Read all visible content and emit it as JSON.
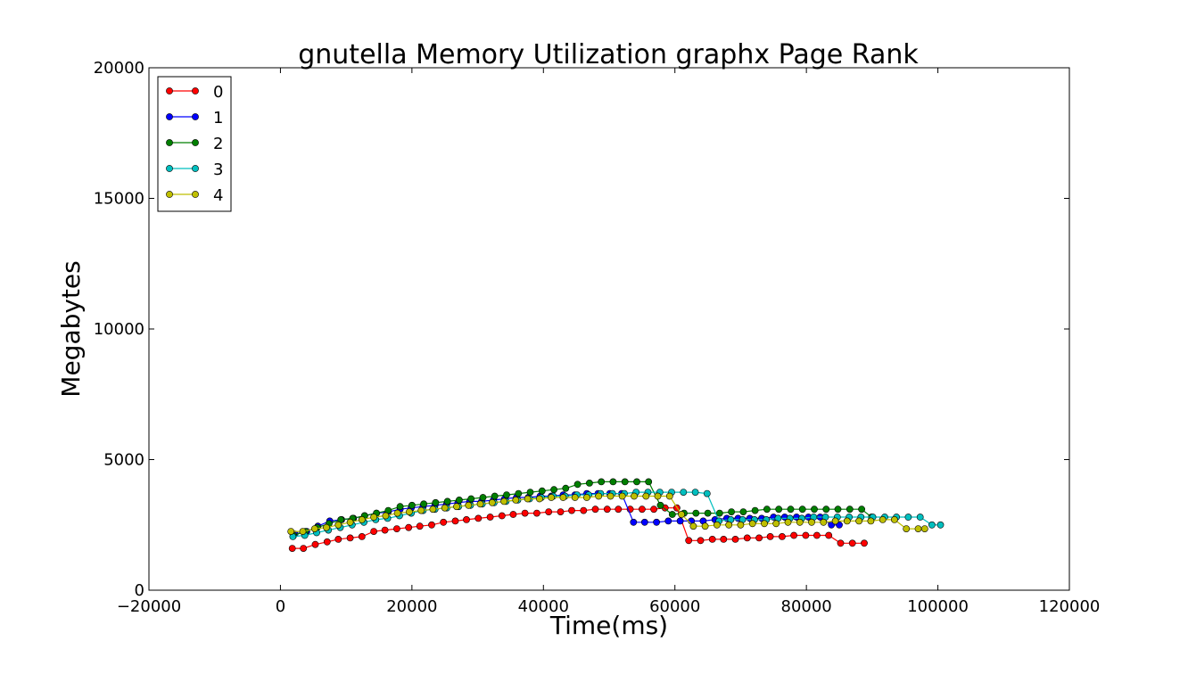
{
  "chart_data": {
    "type": "line",
    "title": "gnutella Memory Utilization graphx Page Rank",
    "xlabel": "Time(ms)",
    "ylabel": "Megabytes",
    "xlim": [
      -20000,
      120000
    ],
    "ylim": [
      0,
      20000
    ],
    "xticks": [
      -20000,
      0,
      20000,
      40000,
      60000,
      80000,
      100000,
      120000
    ],
    "yticks": [
      0,
      5000,
      10000,
      15000,
      20000
    ],
    "xtick_labels": [
      "−20000",
      "0",
      "20000",
      "40000",
      "60000",
      "80000",
      "100000",
      "120000"
    ],
    "ytick_labels": [
      "0",
      "5000",
      "10000",
      "15000",
      "20000"
    ],
    "grid": false,
    "legend_position": "top-left",
    "series": [
      {
        "name": "0",
        "color": "#ff0000",
        "x": [
          1800,
          3500,
          5300,
          7100,
          8800,
          10600,
          12400,
          14200,
          15900,
          17700,
          19500,
          21200,
          23000,
          24800,
          26600,
          28300,
          30100,
          31900,
          33700,
          35400,
          37200,
          39000,
          40800,
          42600,
          44300,
          46100,
          47900,
          49700,
          51400,
          53200,
          55000,
          56800,
          58500,
          60300,
          62100,
          63900,
          65700,
          67400,
          69200,
          71000,
          72800,
          74500,
          76300,
          78100,
          79900,
          81600,
          83400,
          85200,
          87000,
          88800
        ],
        "y": [
          1600,
          1600,
          1750,
          1850,
          1950,
          2000,
          2050,
          2250,
          2300,
          2350,
          2400,
          2450,
          2500,
          2600,
          2650,
          2700,
          2750,
          2800,
          2850,
          2900,
          2950,
          2950,
          3000,
          3000,
          3050,
          3050,
          3100,
          3100,
          3100,
          3100,
          3100,
          3100,
          3150,
          3150,
          1900,
          1900,
          1950,
          1950,
          1950,
          2000,
          2000,
          2050,
          2050,
          2100,
          2100,
          2100,
          2100,
          1800,
          1800,
          1800
        ]
      },
      {
        "name": "1",
        "color": "#0000ff",
        "x": [
          2200,
          4000,
          5700,
          7500,
          9300,
          11100,
          12800,
          14600,
          16400,
          18200,
          19900,
          21700,
          23500,
          25300,
          27000,
          28800,
          30600,
          32400,
          34100,
          35900,
          37700,
          39500,
          41200,
          43000,
          44800,
          46600,
          48300,
          50100,
          51900,
          53700,
          55400,
          57200,
          59000,
          60800,
          62500,
          64300,
          66100,
          67900,
          69600,
          71400,
          73200,
          75000,
          76700,
          78500,
          80300,
          82100,
          83800,
          85000
        ],
        "y": [
          2150,
          2250,
          2450,
          2650,
          2700,
          2750,
          2850,
          2950,
          3000,
          3100,
          3150,
          3200,
          3250,
          3300,
          3350,
          3400,
          3400,
          3450,
          3500,
          3550,
          3550,
          3600,
          3600,
          3650,
          3650,
          3700,
          3700,
          3700,
          3700,
          2600,
          2600,
          2600,
          2650,
          2650,
          2650,
          2650,
          2700,
          2750,
          2750,
          2750,
          2750,
          2800,
          2800,
          2800,
          2800,
          2800,
          2500,
          2500
        ]
      },
      {
        "name": "2",
        "color": "#007f00",
        "x": [
          2000,
          3800,
          5600,
          7400,
          9200,
          11000,
          12800,
          14600,
          16400,
          18200,
          20000,
          21800,
          23600,
          25400,
          27200,
          29000,
          30800,
          32600,
          34400,
          36200,
          38000,
          39800,
          41600,
          43400,
          45200,
          47000,
          48800,
          50600,
          52400,
          54200,
          56000,
          57800,
          59600,
          61400,
          63200,
          65000,
          66800,
          68600,
          70400,
          72200,
          74000,
          75800,
          77600,
          79400,
          81200,
          83000,
          84800,
          86600,
          88400,
          89900
        ],
        "y": [
          2100,
          2250,
          2400,
          2550,
          2700,
          2750,
          2850,
          2950,
          3050,
          3200,
          3250,
          3300,
          3350,
          3400,
          3450,
          3500,
          3550,
          3600,
          3650,
          3700,
          3750,
          3800,
          3850,
          3900,
          4050,
          4100,
          4150,
          4150,
          4150,
          4150,
          4150,
          3250,
          2900,
          2950,
          2950,
          2950,
          2950,
          3000,
          3000,
          3050,
          3100,
          3100,
          3100,
          3100,
          3100,
          3100,
          3100,
          3100,
          3100,
          2800
        ]
      },
      {
        "name": "3",
        "color": "#00bfbf",
        "x": [
          1900,
          3700,
          5500,
          7300,
          9100,
          10900,
          12700,
          14500,
          16300,
          18100,
          19900,
          21700,
          23500,
          25300,
          27100,
          28900,
          30700,
          32500,
          34300,
          36100,
          37900,
          39700,
          41500,
          43300,
          45100,
          46900,
          48700,
          50500,
          52300,
          54100,
          55900,
          57700,
          59500,
          61300,
          63100,
          64900,
          66700,
          68500,
          70300,
          72100,
          73900,
          75700,
          77500,
          79300,
          81100,
          82900,
          84700,
          86500,
          88300,
          90100,
          91900,
          93700,
          95500,
          97300,
          99100,
          100400
        ],
        "y": [
          2050,
          2100,
          2200,
          2300,
          2400,
          2500,
          2600,
          2700,
          2750,
          2850,
          2950,
          3050,
          3100,
          3150,
          3200,
          3250,
          3300,
          3350,
          3400,
          3450,
          3500,
          3550,
          3600,
          3600,
          3650,
          3650,
          3700,
          3700,
          3700,
          3750,
          3750,
          3750,
          3750,
          3750,
          3750,
          3700,
          2650,
          2700,
          2700,
          2700,
          2700,
          2750,
          2750,
          2750,
          2800,
          2800,
          2800,
          2800,
          2800,
          2800,
          2800,
          2800,
          2800,
          2800,
          2500,
          2500
        ]
      },
      {
        "name": "4",
        "color": "#bfbf00",
        "x": [
          1600,
          3400,
          5200,
          7000,
          8800,
          10600,
          12400,
          14200,
          16000,
          17800,
          19600,
          21400,
          23200,
          25000,
          26800,
          28600,
          30400,
          32200,
          34000,
          35800,
          37600,
          39400,
          41200,
          43000,
          44800,
          46600,
          48400,
          50200,
          52000,
          53800,
          55600,
          57400,
          59200,
          61000,
          62800,
          64600,
          66400,
          68200,
          70000,
          71800,
          73600,
          75400,
          77200,
          79000,
          80800,
          82600,
          84400,
          86200,
          88000,
          89800,
          91600,
          93400,
          95200,
          97000,
          98000
        ],
        "y": [
          2250,
          2250,
          2350,
          2400,
          2500,
          2600,
          2700,
          2800,
          2850,
          2950,
          3000,
          3050,
          3100,
          3150,
          3200,
          3250,
          3300,
          3350,
          3400,
          3450,
          3500,
          3500,
          3550,
          3550,
          3550,
          3550,
          3600,
          3600,
          3600,
          3600,
          3600,
          3600,
          3600,
          2900,
          2450,
          2450,
          2500,
          2500,
          2500,
          2550,
          2550,
          2550,
          2600,
          2600,
          2600,
          2600,
          2650,
          2650,
          2650,
          2650,
          2700,
          2700,
          2350,
          2350,
          2350
        ]
      }
    ]
  }
}
